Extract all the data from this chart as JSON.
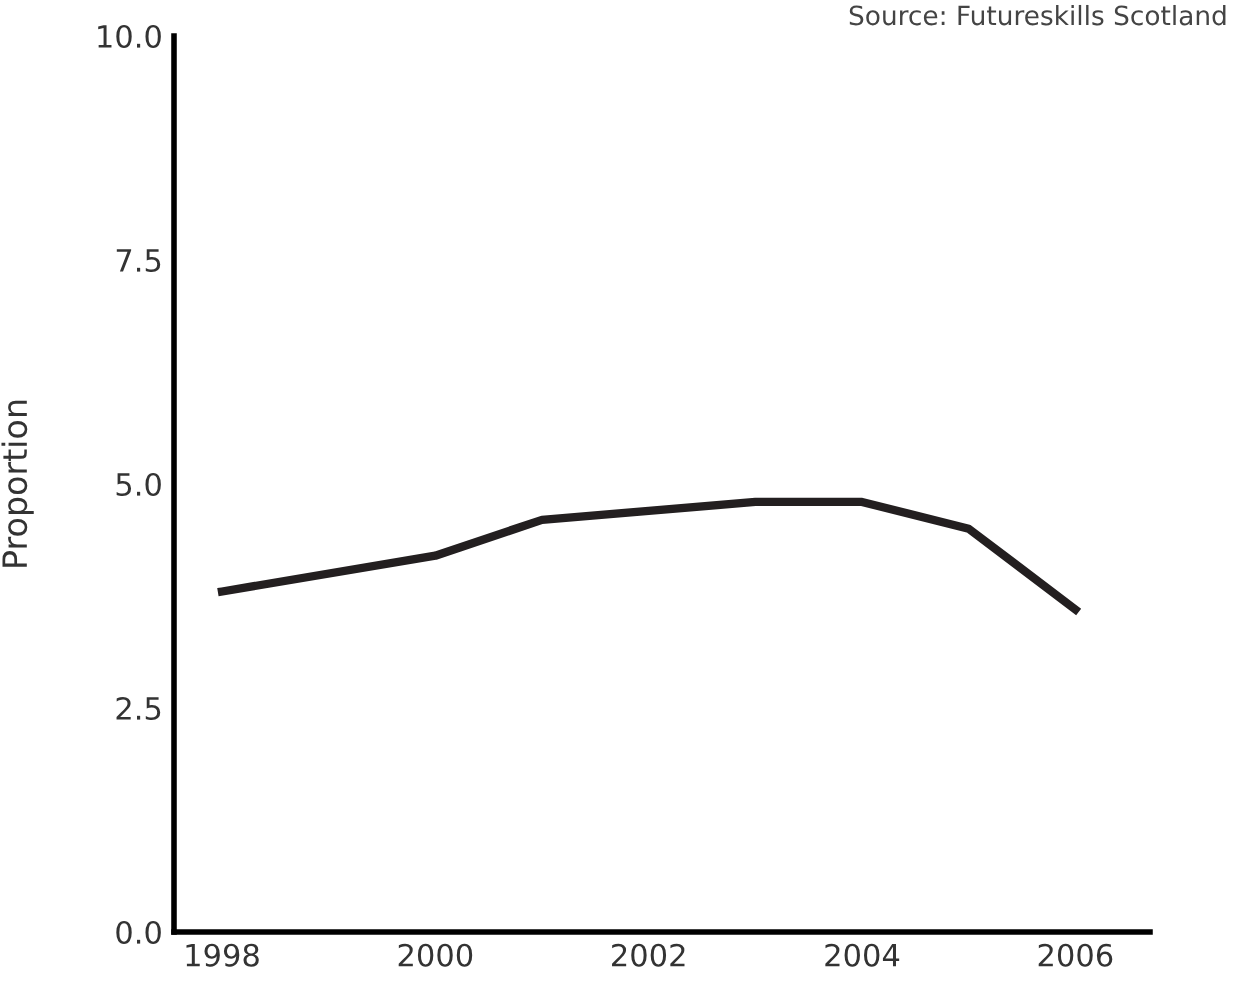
{
  "chart_data": {
    "type": "line",
    "ylabel": "Proportion",
    "x": [
      1998,
      2000,
      2001,
      2002,
      2003,
      2004,
      2005,
      2006
    ],
    "series": [
      {
        "color": "#231f20",
        "values": [
          3.8,
          4.2,
          4.6,
          4.7,
          4.8,
          4.8,
          4.5,
          3.6
        ]
      }
    ],
    "xlim": [
      1997.55,
      2006.7
    ],
    "xticks": [
      1998,
      2000,
      2002,
      2004,
      2006
    ],
    "ylim": [
      0,
      10
    ],
    "yticks": [
      {
        "value": 0,
        "label": "0.0"
      },
      {
        "value": 2.5,
        "label": "2.5"
      },
      {
        "value": 5,
        "label": "5.0"
      },
      {
        "value": 7.5,
        "label": "7.5"
      },
      {
        "value": 10,
        "label": "10.0"
      }
    ],
    "grid": false,
    "marker": "none",
    "line_style": "solid",
    "annotations": [
      "Source: Futureskills Scotland"
    ]
  }
}
